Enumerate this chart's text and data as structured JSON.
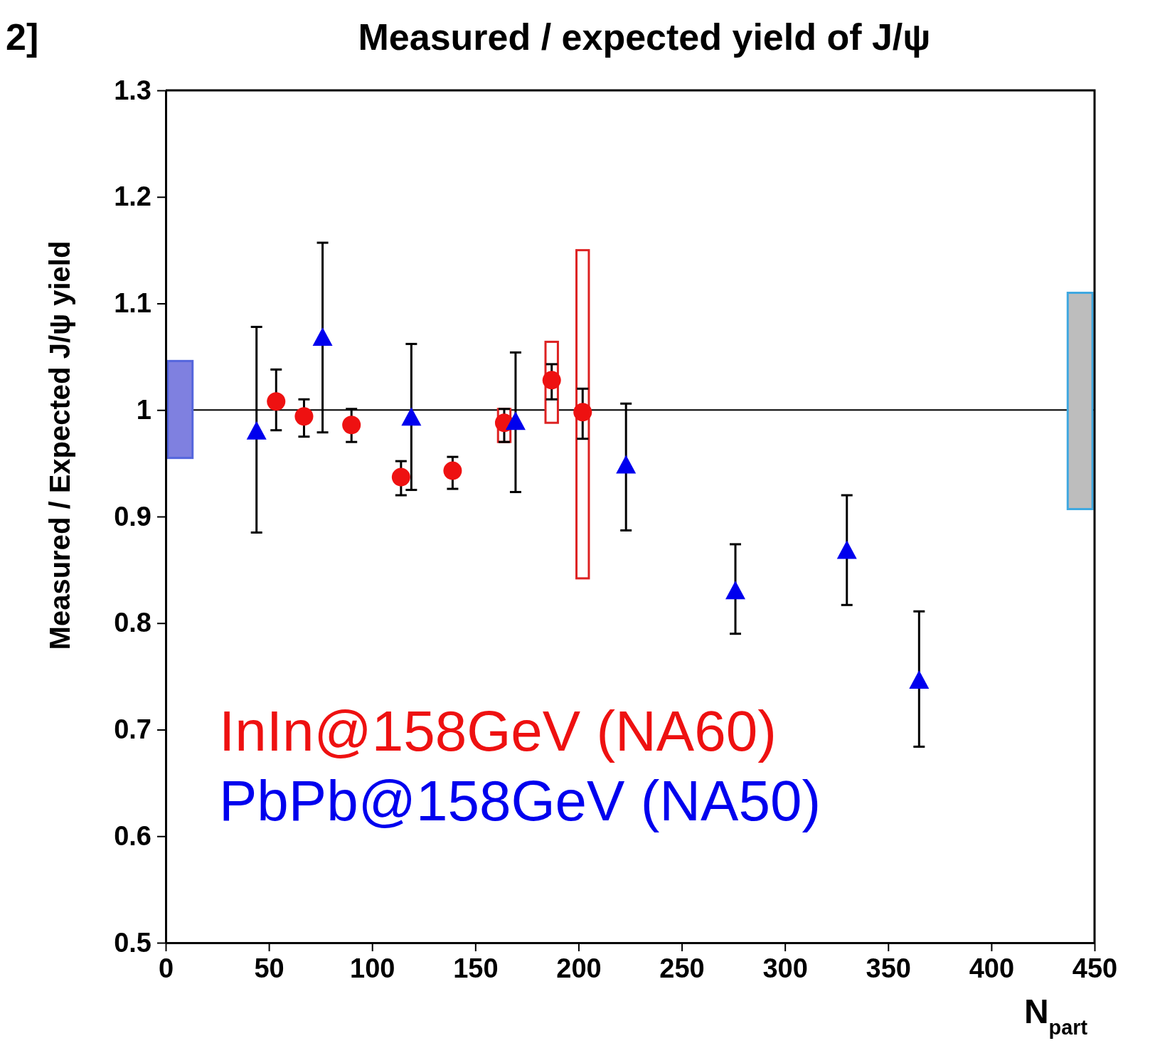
{
  "chart_data": {
    "type": "scatter",
    "title": "Measured / expected yield of J/ψ",
    "xlabel": "N$_{part}$",
    "ylabel": "Measured / Expected J/ψ yield",
    "annotations": [
      "2]"
    ],
    "xlim": [
      0,
      450
    ],
    "xticks": [
      0,
      50,
      100,
      150,
      200,
      250,
      300,
      350,
      400,
      450
    ],
    "ylim": [
      0.5,
      1.3
    ],
    "yticks": [
      0.5,
      0.6,
      0.7,
      0.8,
      0.9,
      1,
      1.1,
      1.2,
      1.3
    ],
    "series": [
      {
        "name": "InIn@158GeV (NA60)",
        "type": "scatter",
        "marker": "circle",
        "color": "#ee1111",
        "x": [
          53.5,
          67,
          90,
          114,
          139,
          164,
          187,
          202
        ],
        "values": [
          1.008,
          0.994,
          0.986,
          0.937,
          0.943,
          0.988,
          1.028,
          0.998
        ],
        "errors": [
          [
            0.981,
            1.038
          ],
          [
            0.975,
            1.01
          ],
          [
            0.97,
            1.001
          ],
          [
            0.92,
            0.952
          ],
          [
            0.926,
            0.956
          ],
          [
            0.97,
            1.001
          ],
          [
            1.01,
            1.043
          ],
          [
            0.973,
            1.02
          ]
        ]
      },
      {
        "name": "PbPb@158GeV (NA50)",
        "type": "scatter",
        "marker": "triangle",
        "color": "#0000ee",
        "x": [
          44,
          76,
          119,
          169.5,
          223,
          276,
          330,
          365
        ],
        "values": [
          0.979,
          1.067,
          0.992,
          0.988,
          0.947,
          0.829,
          0.867,
          0.745
        ],
        "errors": [
          [
            0.885,
            1.078
          ],
          [
            0.979,
            1.157
          ],
          [
            0.925,
            1.062
          ],
          [
            0.923,
            1.054
          ],
          [
            0.887,
            1.006
          ],
          [
            0.79,
            0.874
          ],
          [
            0.817,
            0.92
          ],
          [
            0.684,
            0.811
          ]
        ]
      },
      {
        "type": "bar",
        "color": "#dd2222",
        "colors": [
          "#ffffff",
          "#ffffff",
          "#ffffff"
        ],
        "x": [
          164,
          187,
          202
        ],
        "base": [
          0.97,
          0.988,
          0.842
        ],
        "values": [
          0.031,
          0.076,
          0.308
        ]
      },
      {
        "type": "bar",
        "color": "#5566dd",
        "colors": [
          "#7f80e0"
        ],
        "x": [
          7
        ],
        "base": [
          0.955
        ],
        "values": [
          0.091
        ]
      },
      {
        "type": "bar",
        "color": "#3fa8e0",
        "colors": [
          "#bdbdbd"
        ],
        "x": [
          443
        ],
        "base": [
          0.907
        ],
        "values": [
          0.203
        ]
      }
    ],
    "ref_lines": [
      {
        "axis": "y",
        "value": 1,
        "color": "#000000"
      }
    ],
    "legend": "bottom left",
    "grid": false
  }
}
